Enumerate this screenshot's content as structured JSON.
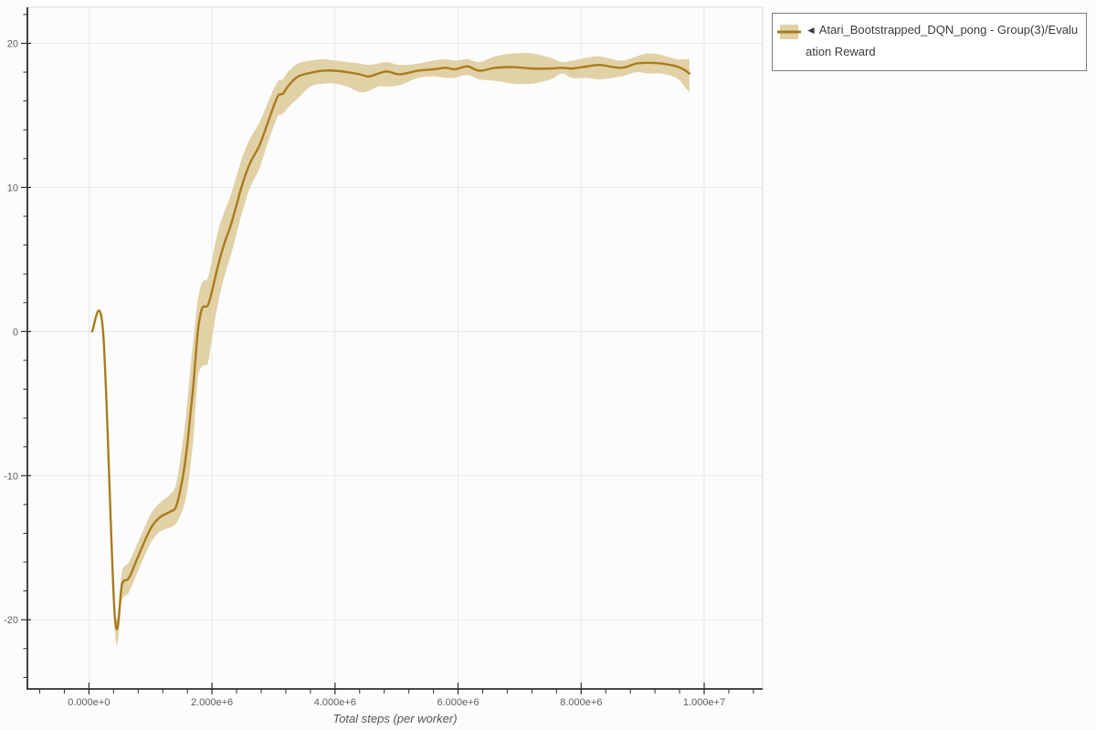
{
  "legend": {
    "items": [
      {
        "collapse_icon": "◄",
        "label": "Atari_Bootstrapped_DQN_pong - Group(3)/Evaluation Reward",
        "swatch_band_color": "#e1d1a6",
        "swatch_line_color": "#a87c1e"
      }
    ]
  },
  "chart_data": {
    "type": "line",
    "title": "",
    "xlabel": "Total steps (per worker)",
    "ylabel": "",
    "x_range": [
      -1000000,
      10950000
    ],
    "y_range": [
      -24.8,
      22.5
    ],
    "x_ticks": [
      {
        "value": 0,
        "label": "0.000e+0"
      },
      {
        "value": 2000000,
        "label": "2.000e+6"
      },
      {
        "value": 4000000,
        "label": "4.000e+6"
      },
      {
        "value": 6000000,
        "label": "6.000e+6"
      },
      {
        "value": 8000000,
        "label": "8.000e+6"
      },
      {
        "value": 10000000,
        "label": "1.000e+7"
      }
    ],
    "x_minor_step": 400000,
    "y_ticks": [
      {
        "value": 20,
        "label": "20"
      },
      {
        "value": 10,
        "label": "10"
      },
      {
        "value": 0,
        "label": "0"
      },
      {
        "value": -10,
        "label": "-10"
      },
      {
        "value": -20,
        "label": "-20"
      }
    ],
    "y_minor_step": 2,
    "grid": true,
    "legend_position": "top-right-outside",
    "colors": {
      "line": "#a87c1e",
      "band": "#e1d1a6",
      "grid": "#e8e8e8",
      "plot_border": "#dadada",
      "axis": "#2d2d2d",
      "tick_label": "#5e5e5e",
      "axis_title": "#555555"
    },
    "series": [
      {
        "name": "Atari_Bootstrapped_DQN_pong - Group(3)/Evaluation Reward",
        "color": "#a87c1e",
        "band_color": "#e1d1a6",
        "points": [
          [
            50000,
            0,
            0,
            0
          ],
          [
            230000,
            0,
            0,
            0
          ],
          [
            420000,
            -19.7,
            -20.7,
            -19.2
          ],
          [
            540000,
            -17.5,
            -18.6,
            -16.6
          ],
          [
            650000,
            -17.1,
            -18.1,
            -16.0
          ],
          [
            800000,
            -15.6,
            -16.6,
            -14.6
          ],
          [
            1000000,
            -13.7,
            -14.7,
            -12.7
          ],
          [
            1150000,
            -12.9,
            -13.9,
            -11.9
          ],
          [
            1320000,
            -12.5,
            -13.6,
            -11.3
          ],
          [
            1420000,
            -12.1,
            -13.3,
            -10.5
          ],
          [
            1530000,
            -10.0,
            -12.3,
            -7.5
          ],
          [
            1600000,
            -7.8,
            -11.0,
            -4.8
          ],
          [
            1650000,
            -5.7,
            -9.3,
            -2.5
          ],
          [
            1700000,
            -3.6,
            -7.3,
            -0.5
          ],
          [
            1770000,
            0.0,
            -3.3,
            2.2
          ],
          [
            1840000,
            1.6,
            -2.4,
            3.4
          ],
          [
            1930000,
            1.8,
            -2.2,
            3.7
          ],
          [
            2000000,
            2.8,
            -0.5,
            5.0
          ],
          [
            2100000,
            4.6,
            2.0,
            7.0
          ],
          [
            2200000,
            6.1,
            3.8,
            8.3
          ],
          [
            2300000,
            7.3,
            5.2,
            9.4
          ],
          [
            2400000,
            8.8,
            6.8,
            10.8
          ],
          [
            2500000,
            10.3,
            8.4,
            12.2
          ],
          [
            2620000,
            11.7,
            10.0,
            13.4
          ],
          [
            2770000,
            12.9,
            11.3,
            14.5
          ],
          [
            2900000,
            14.4,
            13.0,
            15.8
          ],
          [
            3000000,
            15.6,
            14.2,
            16.8
          ],
          [
            3080000,
            16.4,
            15.0,
            17.4
          ],
          [
            3150000,
            16.5,
            15.1,
            17.5
          ],
          [
            3250000,
            17.1,
            15.6,
            18.1
          ],
          [
            3400000,
            17.7,
            16.2,
            18.6
          ],
          [
            3600000,
            17.95,
            17.0,
            18.8
          ],
          [
            3800000,
            18.1,
            17.2,
            18.9
          ],
          [
            4000000,
            18.1,
            17.2,
            18.8
          ],
          [
            4200000,
            18.0,
            17.0,
            18.7
          ],
          [
            4400000,
            17.85,
            16.6,
            18.6
          ],
          [
            4550000,
            17.7,
            16.7,
            18.5
          ],
          [
            4700000,
            17.9,
            17.0,
            18.6
          ],
          [
            4850000,
            18.05,
            17.0,
            18.7
          ],
          [
            5050000,
            17.85,
            17.1,
            18.5
          ],
          [
            5350000,
            18.1,
            17.6,
            18.6
          ],
          [
            5600000,
            18.2,
            17.7,
            18.8
          ],
          [
            5800000,
            18.3,
            17.6,
            18.9
          ],
          [
            5950000,
            18.2,
            17.6,
            18.8
          ],
          [
            6150000,
            18.4,
            17.8,
            18.9
          ],
          [
            6350000,
            18.1,
            17.5,
            18.7
          ],
          [
            6600000,
            18.3,
            17.4,
            19.1
          ],
          [
            6900000,
            18.35,
            17.2,
            19.3
          ],
          [
            7200000,
            18.25,
            17.2,
            19.3
          ],
          [
            7500000,
            18.25,
            17.5,
            19.0
          ],
          [
            7690000,
            18.3,
            17.9,
            18.7
          ],
          [
            7850000,
            18.25,
            17.6,
            18.8
          ],
          [
            8100000,
            18.4,
            17.6,
            19.0
          ],
          [
            8300000,
            18.5,
            17.5,
            19.1
          ],
          [
            8650000,
            18.3,
            17.7,
            18.8
          ],
          [
            8900000,
            18.6,
            18.0,
            19.1
          ],
          [
            9100000,
            18.65,
            17.9,
            19.3
          ],
          [
            9300000,
            18.6,
            17.9,
            19.2
          ],
          [
            9550000,
            18.4,
            17.6,
            18.9
          ],
          [
            9680000,
            18.15,
            17.0,
            18.9
          ],
          [
            9760000,
            17.9,
            16.6,
            18.9
          ]
        ]
      }
    ]
  }
}
